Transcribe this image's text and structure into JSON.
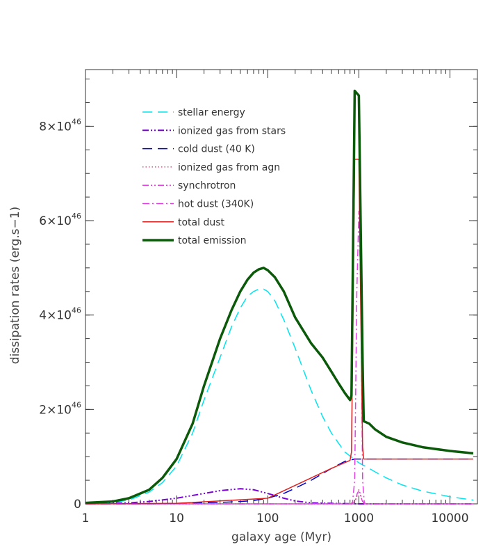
{
  "chart_data": {
    "type": "line",
    "title": "",
    "xlabel": "galaxy age (Myr)",
    "ylabel": "dissipation rates (erg.s−1)",
    "xscale": "log",
    "xlim": [
      1,
      20000
    ],
    "ylim": [
      0,
      9.2e+46
    ],
    "grid": false,
    "legend_position": "upper-left",
    "x_ticks": [
      {
        "value": 1,
        "label": "1"
      },
      {
        "value": 10,
        "label": "10"
      },
      {
        "value": 100,
        "label": "100"
      },
      {
        "value": 1000,
        "label": "1000"
      },
      {
        "value": 10000,
        "label": "10000"
      }
    ],
    "y_ticks": [
      {
        "value": 0,
        "label": "0"
      },
      {
        "value": 2e+46,
        "mantissa": "2",
        "base": "×10",
        "exponent": "46"
      },
      {
        "value": 4e+46,
        "mantissa": "4",
        "base": "×10",
        "exponent": "46"
      },
      {
        "value": 6e+46,
        "mantissa": "6",
        "base": "×10",
        "exponent": "46"
      },
      {
        "value": 8e+46,
        "mantissa": "8",
        "base": "×10",
        "exponent": "46"
      }
    ],
    "series": [
      {
        "name": "stellar energy",
        "color": "#00e5ee",
        "dash": "dash",
        "x": [
          1,
          2,
          3,
          5,
          7,
          10,
          15,
          20,
          30,
          40,
          50,
          60,
          70,
          80,
          90,
          100,
          120,
          150,
          200,
          300,
          400,
          500,
          700,
          1000,
          1300,
          1500,
          2000,
          3000,
          5000,
          10000,
          18000
        ],
        "y": [
          1e+44,
          3e+44,
          8e+44,
          2.5e+45,
          4.5e+45,
          8e+45,
          1.5e+46,
          2.2e+46,
          3.1e+46,
          3.75e+46,
          4.15e+46,
          4.4e+46,
          4.5e+46,
          4.55e+46,
          4.55e+46,
          4.5e+46,
          4.3e+46,
          3.9e+46,
          3.3e+46,
          2.4e+46,
          1.85e+46,
          1.5e+46,
          1.1e+46,
          8.7e+45,
          7.5e+45,
          6.8e+45,
          5.5e+45,
          4e+45,
          2.7e+45,
          1.5e+45,
          8e+44
        ]
      },
      {
        "name": "ionized gas from stars",
        "color": "#7a00d6",
        "dash": "dash-dot-dot",
        "x": [
          1,
          3,
          5,
          10,
          20,
          30,
          50,
          70,
          100,
          150,
          200,
          300,
          500,
          1000,
          2000,
          5000,
          18000
        ],
        "y": [
          0.0,
          2e+44,
          5e+44,
          1.2e+45,
          2.2e+45,
          2.8e+45,
          3.2e+45,
          3e+45,
          2.2e+45,
          1.2e+45,
          6e+44,
          2e+44,
          1e+44,
          0.0,
          0.0,
          0.0,
          0.0
        ]
      },
      {
        "name": "cold dust (40 K)",
        "color": "#0000cd",
        "dash": "dash",
        "x": [
          1,
          5,
          10,
          30,
          50,
          70,
          100,
          150,
          200,
          300,
          500,
          700,
          900,
          1000,
          2000,
          5000,
          18000
        ],
        "y": [
          0.0,
          0.0,
          1e+44,
          3e+44,
          5e+44,
          7e+44,
          1.2e+45,
          2.2e+45,
          3.3e+45,
          5e+45,
          7.5e+45,
          9e+45,
          9.5e+45,
          9.5e+45,
          9.5e+45,
          9.5e+45,
          9.5e+45
        ]
      },
      {
        "name": "ionized gas from agn",
        "color": "#e05080",
        "dash": "dot",
        "x": [
          1,
          800,
          900,
          950,
          1000,
          1050,
          1100,
          1200,
          18000
        ],
        "y": [
          0.0,
          0.0,
          5e+44,
          1.5e+45,
          3e+45,
          1.5e+45,
          5e+44,
          0.0,
          0.0
        ]
      },
      {
        "name": "synchrotron",
        "color": "#e040e0",
        "dash": "dash-dot-dot",
        "x": [
          1,
          850,
          920,
          960,
          1000,
          1040,
          1080,
          1150,
          18000
        ],
        "y": [
          0.0,
          0.0,
          8e+44,
          2.2e+45,
          2.8e+45,
          2.2e+45,
          8e+44,
          0.0,
          0.0
        ]
      },
      {
        "name": "hot dust (340K)",
        "color": "#e040e0",
        "dash": "dash-dot",
        "x": [
          1,
          850,
          900,
          950,
          1000,
          1050,
          1100,
          1150,
          18000
        ],
        "y": [
          0.0,
          0.0,
          5e+45,
          4.5e+46,
          6.2e+46,
          4.5e+46,
          5e+45,
          0.0,
          0.0
        ]
      },
      {
        "name": "total dust",
        "color": "#e02020",
        "dash": "solid",
        "x": [
          1,
          10,
          100,
          500,
          800,
          830,
          900,
          1000,
          1050,
          1100,
          1130,
          2000,
          5000,
          18000
        ],
        "y": [
          0.0,
          1e+44,
          1.2e+45,
          7.5e+45,
          9.2e+45,
          1.1e+46,
          7.3e+46,
          7.3e+46,
          4e+46,
          1.2e+46,
          9.5e+45,
          9.5e+45,
          9.5e+45,
          9.5e+45
        ]
      },
      {
        "name": "total emission",
        "color": "#0a5a0a",
        "dash": "solid",
        "x": [
          1,
          2,
          3,
          5,
          7,
          10,
          15,
          20,
          30,
          40,
          50,
          60,
          70,
          80,
          90,
          100,
          120,
          150,
          200,
          300,
          400,
          500,
          600,
          700,
          800,
          830,
          900,
          1000,
          1100,
          1130,
          1300,
          1500,
          2000,
          3000,
          5000,
          10000,
          18000
        ],
        "y": [
          2e+44,
          5e+44,
          1.2e+45,
          3e+45,
          5.5e+45,
          9.5e+45,
          1.7e+46,
          2.5e+46,
          3.5e+46,
          4.1e+46,
          4.5e+46,
          4.75e+46,
          4.9e+46,
          4.97e+46,
          5e+46,
          4.95e+46,
          4.8e+46,
          4.5e+46,
          3.95e+46,
          3.4e+46,
          3.1e+46,
          2.8e+46,
          2.55e+46,
          2.35e+46,
          2.2e+46,
          2.3e+46,
          8.75e+46,
          8.65e+46,
          3e+46,
          1.75e+46,
          1.7e+46,
          1.58e+46,
          1.42e+46,
          1.3e+46,
          1.2e+46,
          1.12e+46,
          1.07e+46
        ]
      }
    ]
  }
}
